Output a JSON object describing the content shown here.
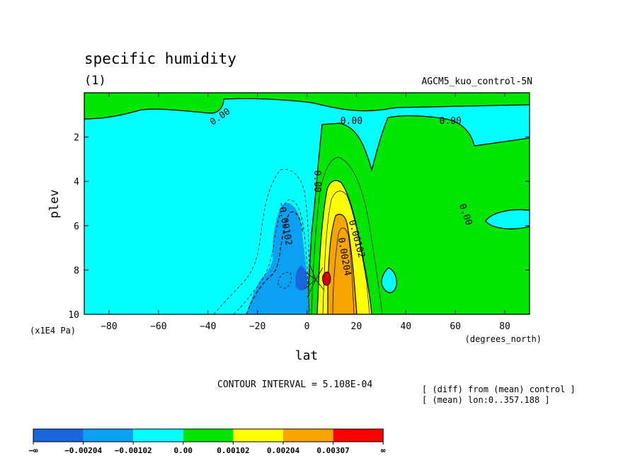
{
  "chart_data": {
    "type": "contour",
    "title": "specific humidity",
    "subtitle": "(1)",
    "dataset_label": "AGCM5_kuo_control-5N",
    "xlabel": "lat",
    "x_units": "(degrees_north)",
    "ylabel": "plev",
    "y_units": "(x1E4 Pa)",
    "xlim": [
      -90,
      90
    ],
    "ylim": [
      0,
      10
    ],
    "y_reversed": true,
    "x_ticks": [
      -80,
      -60,
      -40,
      -20,
      0,
      20,
      40,
      60,
      80
    ],
    "x_tick_labels": [
      "−80",
      "−60",
      "−40",
      "−20",
      "0",
      "20",
      "40",
      "60",
      "80"
    ],
    "y_ticks": [
      2,
      4,
      6,
      8,
      10
    ],
    "y_tick_labels": [
      "2",
      "4",
      "6",
      "8",
      "10"
    ],
    "contour_interval_text": "CONTOUR INTERVAL = 5.108E-04",
    "notes": [
      "[ (diff) from (mean) control ]",
      "[ (mean) lon:0..357.188 ]"
    ],
    "contour_labels": [
      {
        "text": "0.00",
        "lat": -35,
        "plev": 1.1,
        "angle": -35
      },
      {
        "text": "0.00",
        "lat": 18,
        "plev": 1.3,
        "angle": 0
      },
      {
        "text": "0.00",
        "lat": 58,
        "plev": 1.3,
        "angle": 0
      },
      {
        "text": "0.00",
        "lat": 4,
        "plev": 4.0,
        "angle": 90
      },
      {
        "text": "0.00",
        "lat": 64,
        "plev": 5.5,
        "angle": 70
      },
      {
        "text": "-0.00102",
        "lat": -9,
        "plev": 5.9,
        "angle": 80
      },
      {
        "text": "0.00102",
        "lat": 20,
        "plev": 6.6,
        "angle": 75
      },
      {
        "text": "0.00204",
        "lat": 15,
        "plev": 7.4,
        "angle": 80
      }
    ],
    "colorbar": {
      "colors": [
        "#1a66dd",
        "#0ca0f2",
        "#00ffff",
        "#00e600",
        "#ffff00",
        "#f7a400",
        "#ff0000"
      ],
      "labels": [
        "−∞",
        "−0.00204",
        "−0.00102",
        "0.00",
        "0.00102",
        "0.00204",
        "0.00307",
        "∞"
      ]
    }
  }
}
